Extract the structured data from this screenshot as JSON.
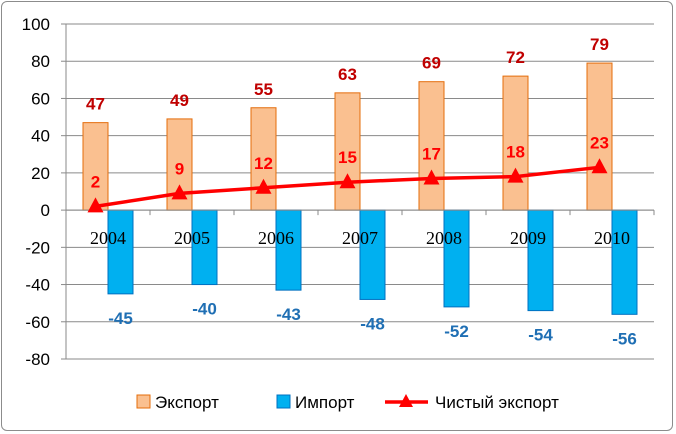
{
  "chart_data": {
    "type": "bar",
    "categories": [
      "2004",
      "2005",
      "2006",
      "2007",
      "2008",
      "2009",
      "2010"
    ],
    "series": [
      {
        "name": "Экспорт",
        "type": "bar",
        "values": [
          47,
          49,
          55,
          63,
          69,
          72,
          79
        ],
        "color": "#FAC090",
        "border": "#E46C0A",
        "label_color": "#C00000"
      },
      {
        "name": "Импорт",
        "type": "bar",
        "values": [
          -45,
          -40,
          -43,
          -48,
          -52,
          -54,
          -56
        ],
        "color": "#00B0F0",
        "border": "#0070C0",
        "label_color": "#1F6FB4"
      },
      {
        "name": "Чистый экспорт",
        "type": "line",
        "values": [
          2,
          9,
          12,
          15,
          17,
          18,
          23
        ],
        "color": "#FF0000",
        "label_color": "#FF0000"
      }
    ],
    "ylim": [
      -80,
      100
    ],
    "yticks": [
      "-80",
      "-60",
      "-40",
      "-20",
      "0",
      "20",
      "40",
      "60",
      "80",
      "100"
    ],
    "grid": true,
    "legend": "bottom"
  }
}
